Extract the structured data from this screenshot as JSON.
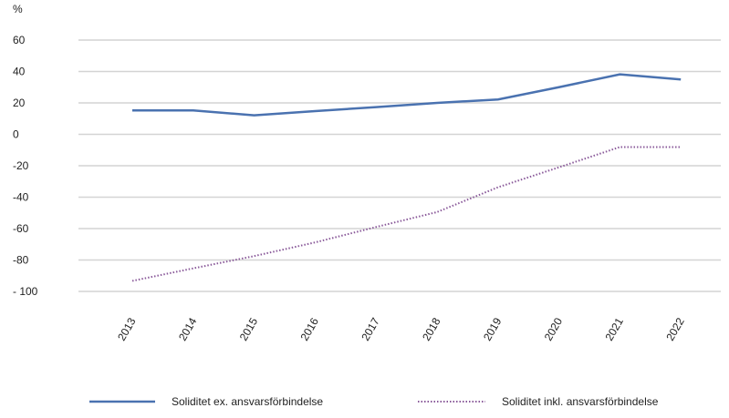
{
  "chart_data": {
    "type": "line",
    "title": "",
    "ylabel": "%",
    "xlabel": "",
    "ylim": [
      -100,
      60
    ],
    "yticks": [
      60,
      40,
      20,
      0,
      -20,
      -40,
      -60,
      -80,
      -100
    ],
    "ytick_labels": [
      "60",
      "40",
      "20",
      "0",
      "-20",
      "-40",
      "-60",
      "-80",
      "- 100"
    ],
    "grid": true,
    "legend_position": "bottom",
    "categories": [
      "2013",
      "2014",
      "2015",
      "2016",
      "2017",
      "2018",
      "2019",
      "2020",
      "2021",
      "2022"
    ],
    "series": [
      {
        "name": "Soliditet ex. ansvarsförbindelse",
        "color": "#4a72b0",
        "style": "solid",
        "values": [
          15.2,
          15.2,
          12.1,
          14.8,
          17.3,
          20.0,
          22.2,
          30.0,
          38.2,
          34.9
        ]
      },
      {
        "name": "Soliditet inkl. ansvarsförbindelse",
        "color": "#8a5a9a",
        "style": "dotted",
        "values": [
          -93.3,
          -85.3,
          -77.5,
          -68.8,
          -59.0,
          -49.5,
          -33.7,
          -21.0,
          -8.1,
          -8.1
        ]
      }
    ]
  }
}
